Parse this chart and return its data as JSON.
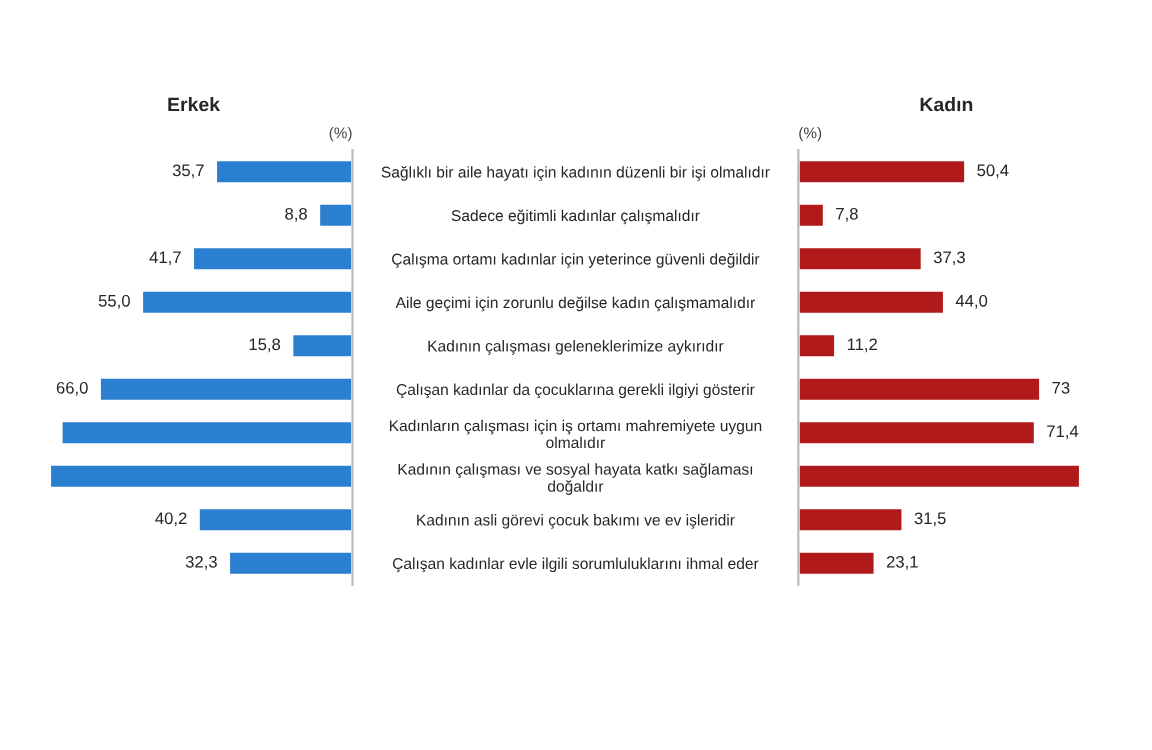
{
  "chart_data": [
    {
      "type": "bar",
      "orientation": "horizontal",
      "title": "Erkek",
      "annotations": [
        "(%)"
      ],
      "color": "#2a7fd0",
      "categories": [
        "Sağlıklı bir aile hayatı için kadının düzenli bir işi olmalıdır",
        "Sadece eğitimli kadınlar çalışmalıdır",
        "Çalışma ortamı kadınlar için yeterince güvenli değildir",
        "Aile geçimi için zorunlu değilse kadın çalışmamalıdır",
        "Kadının çalışması geleneklerimize aykırıdır",
        "Çalışan kadınlar da çocuklarına gerekli ilgiyi gösterir",
        "Kadınların çalışması için iş ortamı mahremiyete uygun\nolmalıdır",
        "Kadının çalışması ve sosyal hayata katkı sağlaması\ndoğaldır",
        "Kadının asli görevi çocuk bakımı ve ev işleridir",
        "Çalışan kadınlar evle ilgili sorumluluklarını ihmal eder"
      ],
      "values": [
        35.7,
        8.8,
        41.7,
        55.0,
        15.8,
        66.0,
        76,
        79,
        40.2,
        32.3
      ],
      "value_labels": [
        "35,7",
        "8,8",
        "41,7",
        "55,0",
        "15,8",
        "66,0",
        null,
        null,
        "40,2",
        "32,3"
      ]
    },
    {
      "type": "bar",
      "orientation": "horizontal",
      "title": "Kadın",
      "annotations": [
        "(%)"
      ],
      "color": "#b01a1a",
      "values": [
        50.4,
        7.8,
        37.3,
        44.0,
        11.2,
        73,
        71.4,
        85,
        31.5,
        23.1
      ],
      "value_labels": [
        "50,4",
        "7,8",
        "37,3",
        "44,0",
        "11,2",
        "73",
        "71,4",
        null,
        "31,5",
        "23,1"
      ]
    }
  ]
}
